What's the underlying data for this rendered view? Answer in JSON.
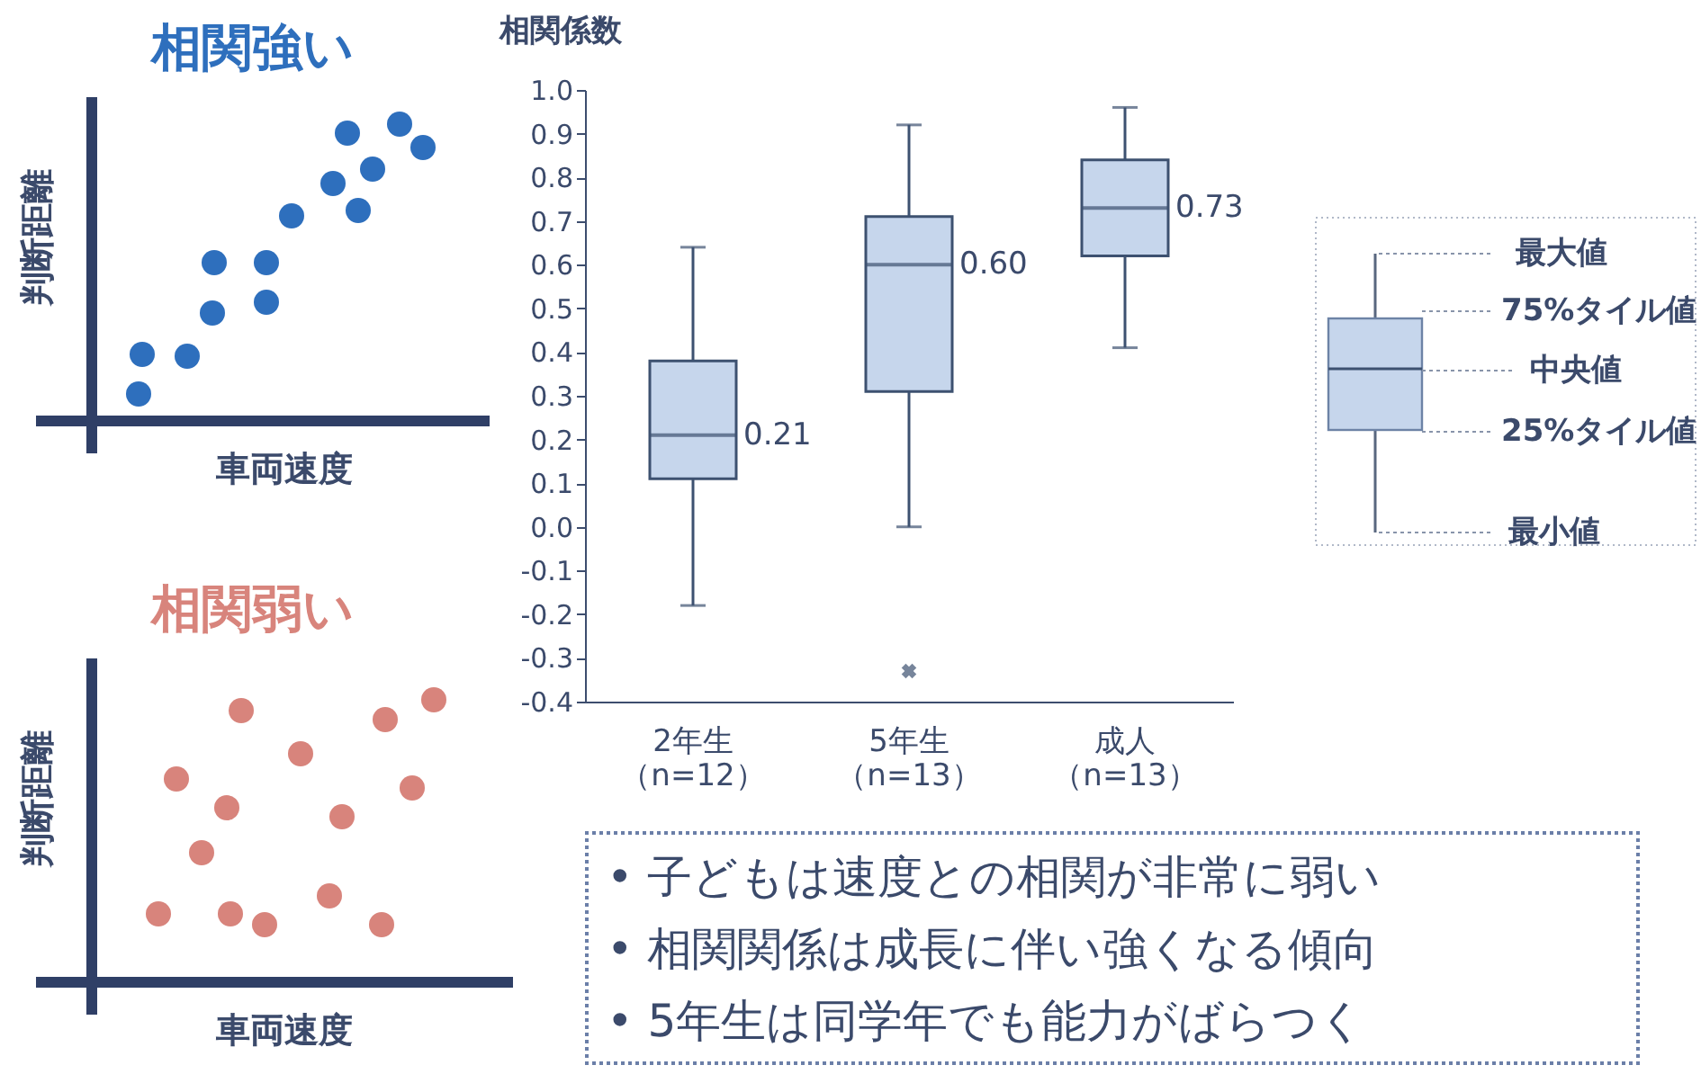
{
  "chart_data": [
    {
      "type": "other",
      "title": "相関強い",
      "xlabel": "車両速度",
      "ylabel": "判断距離"
    },
    {
      "type": "box",
      "ylabel": "相関係数",
      "categories": [
        "2年生（n=12）",
        "5年生（n=13）",
        "成人（n=13）"
      ],
      "boxes": [
        {
          "low": -0.18,
          "q1": 0.11,
          "median": 0.21,
          "q3": 0.38,
          "high": 0.64
        },
        {
          "low": 0.0,
          "q1": 0.31,
          "median": 0.6,
          "q3": 0.71,
          "high": 0.92,
          "outliers": [
            -0.33
          ]
        },
        {
          "low": 0.41,
          "q1": 0.62,
          "median": 0.73,
          "q3": 0.84,
          "high": 0.96
        }
      ],
      "ylim": [
        -0.4,
        1.0
      ],
      "yticks": [
        {
          "value": -0.4,
          "label": "-0.4"
        },
        {
          "value": -0.3,
          "label": "-0.3"
        },
        {
          "value": -0.2,
          "label": "-0.2"
        },
        {
          "value": -0.1,
          "label": "-0.1"
        },
        {
          "value": 0,
          "label": "0.0"
        },
        {
          "value": 0.1,
          "label": "0.1"
        },
        {
          "value": 0.2,
          "label": "0.2"
        },
        {
          "value": 0.3,
          "label": "0.3"
        },
        {
          "value": 0.4,
          "label": "0.4"
        },
        {
          "value": 0.5,
          "label": "0.5"
        },
        {
          "value": 0.6,
          "label": "0.6"
        },
        {
          "value": 0.7,
          "label": "0.7"
        },
        {
          "value": 0.8,
          "label": "0.8"
        },
        {
          "value": 0.9,
          "label": "0.9"
        },
        {
          "value": 1.0,
          "label": "1.0"
        }
      ],
      "grid": false,
      "annotations": [
        {
          "text": "0.21",
          "x": "2年生（n=12）",
          "y": 0.21
        },
        {
          "text": "0.60",
          "x": "5年生（n=13）",
          "y": 0.6
        },
        {
          "text": "0.73",
          "x": "成人（n=13）",
          "y": 0.73
        },
        "最大値",
        "75%タイル値",
        "中央値",
        "25%タイル値",
        "最小値"
      ]
    },
    {
      "type": "other",
      "title": "相関弱い",
      "xlabel": "車両速度",
      "ylabel": "判断距離"
    },
    {
      "type": "other",
      "annotations": [
        "• 子どもは速度との相関が非常に弱い",
        "• 相関関係は成長に伴い強くなる傾向",
        "• 5年生は同学年でも能力がばらつく"
      ]
    }
  ]
}
